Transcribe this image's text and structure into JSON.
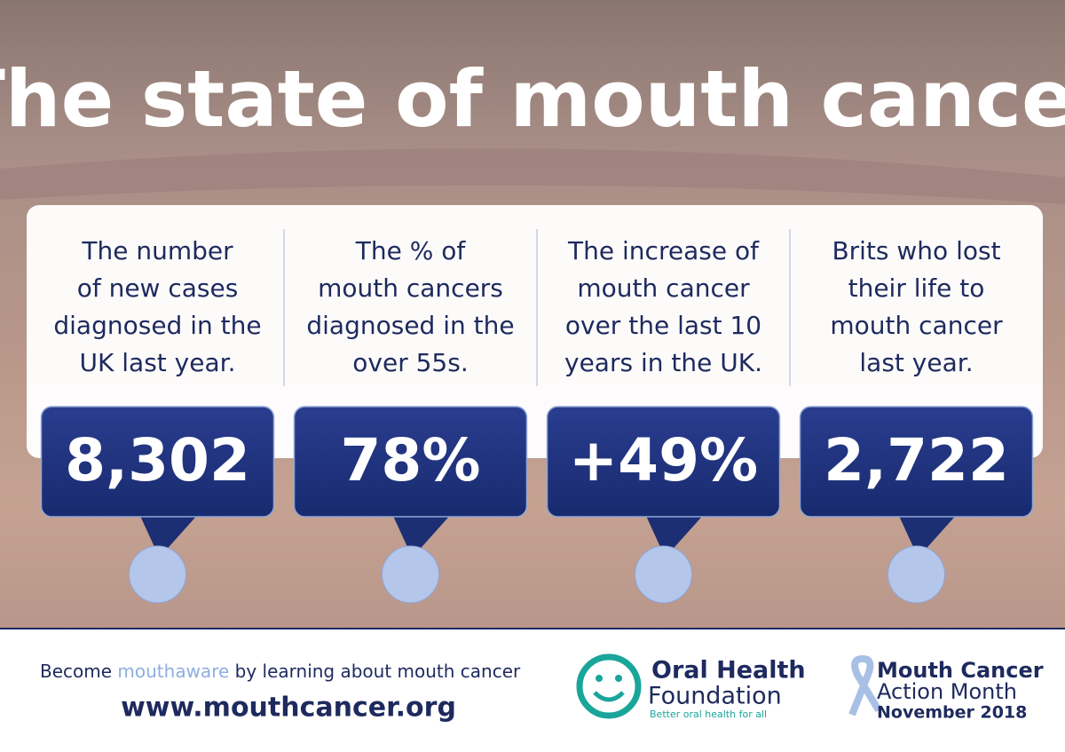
{
  "header": {
    "title": "The state of mouth cancer"
  },
  "stats": [
    {
      "description": [
        "The number",
        "of new cases",
        "diagnosed in the",
        "UK last year."
      ],
      "figure": "8,302"
    },
    {
      "description": [
        "The % of",
        "mouth cancers",
        "diagnosed in the",
        "over 55s."
      ],
      "figure": "78%"
    },
    {
      "description": [
        "The increase of",
        "mouth cancer",
        "over the last 10",
        "years in the UK."
      ],
      "figure": "+49%"
    },
    {
      "description": [
        "Brits who lost",
        "their life to",
        "mouth cancer",
        "last year."
      ],
      "figure": "2,722"
    }
  ],
  "footer": {
    "tagline": [
      "Become ",
      "mouthaware",
      " by learning about mouth cancer"
    ],
    "url": "www.mouthcancer.org",
    "foundation": {
      "name_line1": "Oral Health",
      "name_line2": "Foundation",
      "slogan": "Better oral health for all"
    },
    "campaign": {
      "line1": "Mouth Cancer",
      "line2": "Action Month",
      "line3": "November 2018"
    }
  }
}
